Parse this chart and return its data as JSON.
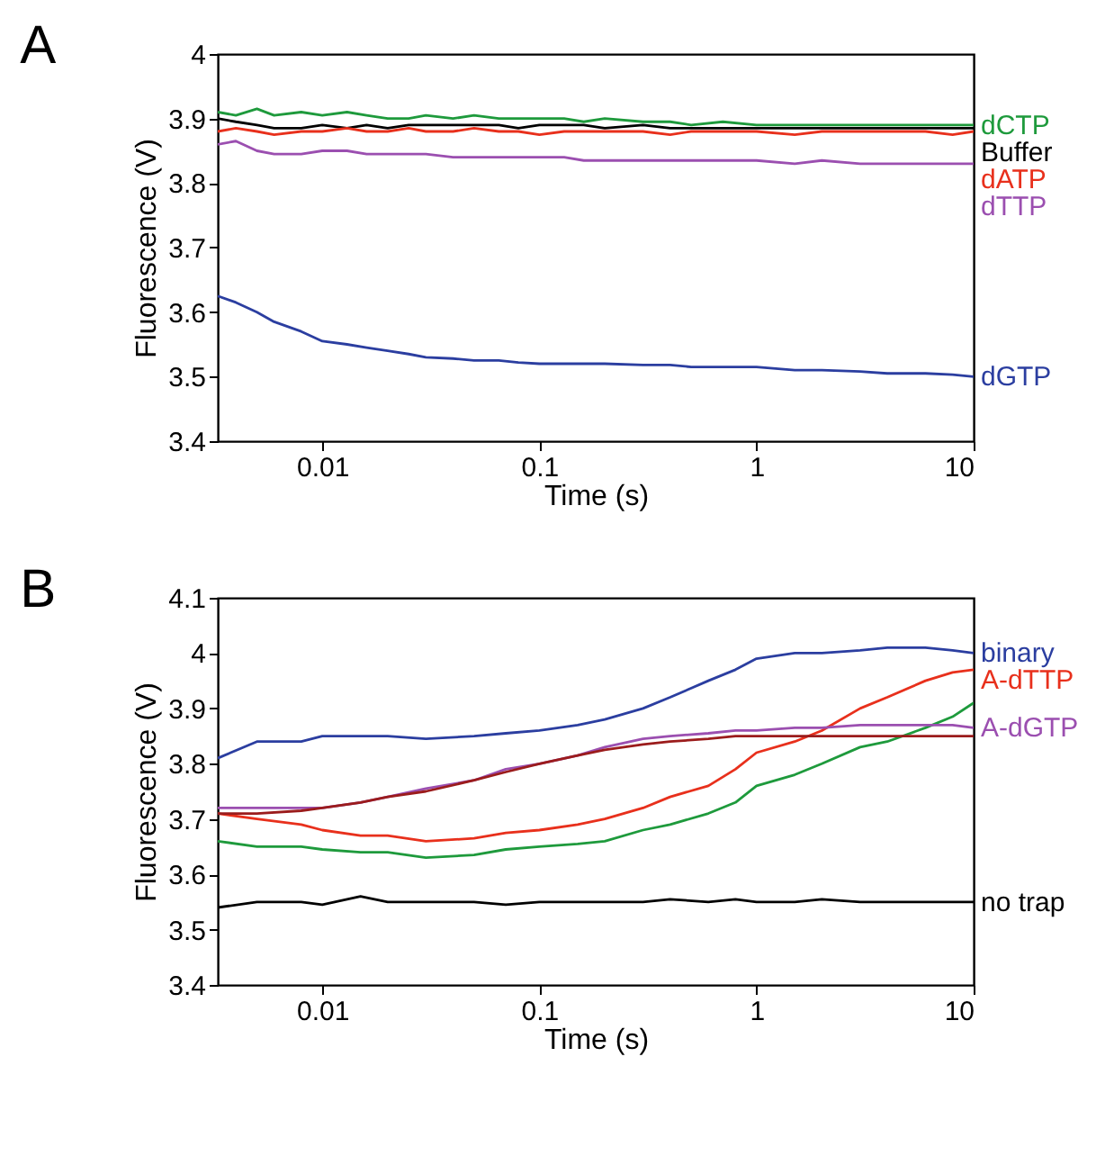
{
  "chart_data": [
    {
      "type": "line",
      "title": "A",
      "xlabel": "Time (s)",
      "ylabel": "Fluorescence (V)",
      "log": "x",
      "grid": false,
      "x": [
        0.0033,
        0.004,
        0.005,
        0.006,
        0.008,
        0.01,
        0.013,
        0.016,
        0.02,
        0.025,
        0.03,
        0.04,
        0.05,
        0.065,
        0.08,
        0.1,
        0.13,
        0.16,
        0.2,
        0.3,
        0.4,
        0.5,
        0.7,
        1,
        1.5,
        2,
        3,
        4,
        6,
        8,
        10
      ],
      "xlim": [
        0.0033,
        10
      ],
      "xticks": [
        0.01,
        0.1,
        1,
        10
      ],
      "ylim": [
        3.4,
        4
      ],
      "yticks": [
        3.4,
        3.5,
        3.6,
        3.7,
        3.8,
        3.9,
        4
      ],
      "series": [
        {
          "name": "dCTP",
          "color": "#1e9a3c",
          "values": [
            3.91,
            3.905,
            3.915,
            3.905,
            3.91,
            3.905,
            3.91,
            3.905,
            3.9,
            3.9,
            3.905,
            3.9,
            3.905,
            3.9,
            3.9,
            3.9,
            3.9,
            3.895,
            3.9,
            3.895,
            3.895,
            3.89,
            3.895,
            3.89,
            3.89,
            3.89,
            3.89,
            3.89,
            3.89,
            3.89,
            3.89
          ]
        },
        {
          "name": "Buffer",
          "color": "#000000",
          "values": [
            3.9,
            3.895,
            3.89,
            3.885,
            3.885,
            3.89,
            3.885,
            3.89,
            3.885,
            3.89,
            3.89,
            3.89,
            3.89,
            3.89,
            3.885,
            3.89,
            3.89,
            3.89,
            3.885,
            3.89,
            3.885,
            3.885,
            3.885,
            3.885,
            3.885,
            3.885,
            3.885,
            3.885,
            3.885,
            3.885,
            3.885
          ]
        },
        {
          "name": "dATP",
          "color": "#e8301c",
          "values": [
            3.88,
            3.885,
            3.88,
            3.875,
            3.88,
            3.88,
            3.885,
            3.88,
            3.88,
            3.885,
            3.88,
            3.88,
            3.885,
            3.88,
            3.88,
            3.875,
            3.88,
            3.88,
            3.88,
            3.88,
            3.875,
            3.88,
            3.88,
            3.88,
            3.875,
            3.88,
            3.88,
            3.88,
            3.88,
            3.875,
            3.88
          ]
        },
        {
          "name": "dTTP",
          "color": "#9b4fb0",
          "values": [
            3.86,
            3.865,
            3.85,
            3.845,
            3.845,
            3.85,
            3.85,
            3.845,
            3.845,
            3.845,
            3.845,
            3.84,
            3.84,
            3.84,
            3.84,
            3.84,
            3.84,
            3.835,
            3.835,
            3.835,
            3.835,
            3.835,
            3.835,
            3.835,
            3.83,
            3.835,
            3.83,
            3.83,
            3.83,
            3.83,
            3.83
          ]
        },
        {
          "name": "dGTP",
          "color": "#2b3ea0",
          "values": [
            3.625,
            3.615,
            3.6,
            3.585,
            3.57,
            3.555,
            3.55,
            3.545,
            3.54,
            3.535,
            3.53,
            3.528,
            3.525,
            3.525,
            3.522,
            3.52,
            3.52,
            3.52,
            3.52,
            3.518,
            3.518,
            3.515,
            3.515,
            3.515,
            3.51,
            3.51,
            3.508,
            3.505,
            3.505,
            3.503,
            3.5
          ]
        }
      ]
    },
    {
      "type": "line",
      "title": "B",
      "xlabel": "Time (s)",
      "ylabel": "Fluorescence (V)",
      "log": "x",
      "grid": false,
      "x": [
        0.0033,
        0.005,
        0.008,
        0.01,
        0.015,
        0.02,
        0.03,
        0.05,
        0.07,
        0.1,
        0.15,
        0.2,
        0.3,
        0.4,
        0.6,
        0.8,
        1,
        1.5,
        2,
        3,
        4,
        6,
        8,
        10
      ],
      "xlim": [
        0.0033,
        10
      ],
      "xticks": [
        0.01,
        0.1,
        1,
        10
      ],
      "ylim": [
        3.4,
        4.1
      ],
      "yticks": [
        3.4,
        3.5,
        3.6,
        3.7,
        3.8,
        3.9,
        4,
        4.1
      ],
      "series": [
        {
          "name": "binary",
          "color": "#2b3ea0",
          "values": [
            3.81,
            3.84,
            3.84,
            3.85,
            3.85,
            3.85,
            3.845,
            3.85,
            3.855,
            3.86,
            3.87,
            3.88,
            3.9,
            3.92,
            3.95,
            3.97,
            3.99,
            4.0,
            4.0,
            4.005,
            4.01,
            4.01,
            4.005,
            4.0
          ]
        },
        {
          "name": "A-dTTP",
          "color": "#e8301c",
          "values": [
            3.71,
            3.7,
            3.69,
            3.68,
            3.67,
            3.67,
            3.66,
            3.665,
            3.675,
            3.68,
            3.69,
            3.7,
            3.72,
            3.74,
            3.76,
            3.79,
            3.82,
            3.84,
            3.86,
            3.9,
            3.92,
            3.95,
            3.965,
            3.97
          ]
        },
        {
          "color": "#1e9a3c",
          "values": [
            3.66,
            3.65,
            3.65,
            3.645,
            3.64,
            3.64,
            3.63,
            3.635,
            3.645,
            3.65,
            3.655,
            3.66,
            3.68,
            3.69,
            3.71,
            3.73,
            3.76,
            3.78,
            3.8,
            3.83,
            3.84,
            3.865,
            3.885,
            3.91
          ]
        },
        {
          "name": "A-dGTP",
          "color": "#9b4fb0",
          "values": [
            3.72,
            3.72,
            3.72,
            3.72,
            3.73,
            3.74,
            3.755,
            3.77,
            3.79,
            3.8,
            3.815,
            3.83,
            3.845,
            3.85,
            3.855,
            3.86,
            3.86,
            3.865,
            3.865,
            3.87,
            3.87,
            3.87,
            3.87,
            3.865
          ]
        },
        {
          "color": "#9b1c1c",
          "values": [
            3.71,
            3.71,
            3.715,
            3.72,
            3.73,
            3.74,
            3.75,
            3.77,
            3.785,
            3.8,
            3.815,
            3.825,
            3.835,
            3.84,
            3.845,
            3.85,
            3.85,
            3.85,
            3.85,
            3.85,
            3.85,
            3.85,
            3.85,
            3.85
          ]
        },
        {
          "name": "no trap",
          "color": "#000000",
          "values": [
            3.54,
            3.55,
            3.55,
            3.545,
            3.56,
            3.55,
            3.55,
            3.55,
            3.545,
            3.55,
            3.55,
            3.55,
            3.55,
            3.555,
            3.55,
            3.555,
            3.55,
            3.55,
            3.555,
            3.55,
            3.55,
            3.55,
            3.55,
            3.55
          ]
        }
      ]
    }
  ]
}
